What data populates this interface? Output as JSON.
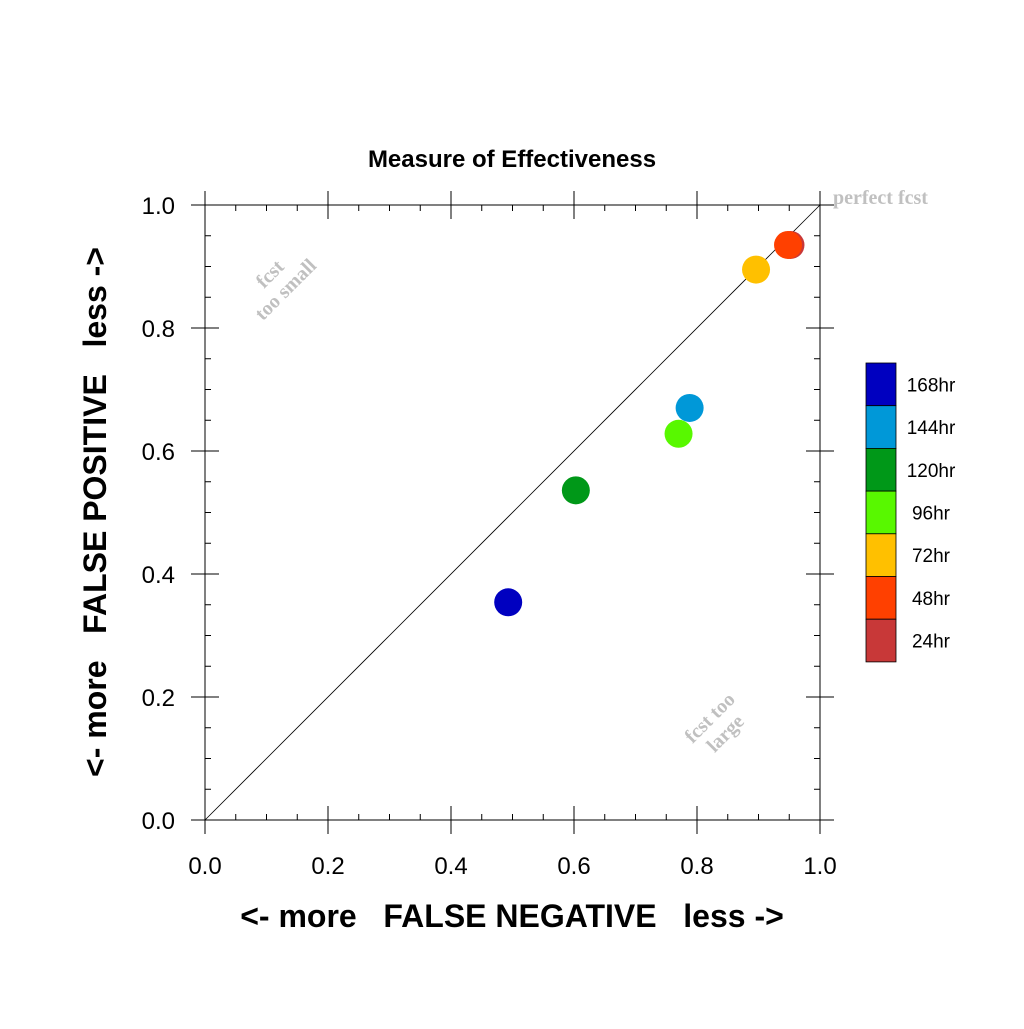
{
  "chart_data": {
    "type": "scatter",
    "title": "Measure of Effectiveness",
    "xlabel": "<- more   FALSE NEGATIVE   less ->",
    "ylabel": "<- more   FALSE POSITIVE   less ->",
    "xlim": [
      0.0,
      1.0
    ],
    "ylim": [
      0.0,
      1.0
    ],
    "xticks": [
      "0.0",
      "0.2",
      "0.4",
      "0.6",
      "0.8",
      "1.0"
    ],
    "yticks": [
      "0.0",
      "0.2",
      "0.4",
      "0.6",
      "0.8",
      "1.0"
    ],
    "grid": false,
    "reference_line": "diagonal y = x",
    "annotations": {
      "perfect": "perfect fcst",
      "too_small_line1": "fcst",
      "too_small_line2": "too small",
      "too_large_line1": "fcst too",
      "too_large_line2": "large"
    },
    "legend_placement": "right",
    "legend": [
      {
        "label": "168hr",
        "color": "#0000c0"
      },
      {
        "label": "144hr",
        "color": "#0098d8"
      },
      {
        "label": "120hr",
        "color": "#009818"
      },
      {
        "label": "96hr",
        "color": "#58f800"
      },
      {
        "label": "72hr",
        "color": "#ffc000"
      },
      {
        "label": "48hr",
        "color": "#ff4000"
      },
      {
        "label": "24hr",
        "color": "#c83838"
      }
    ],
    "points": [
      {
        "series": "168hr",
        "x": 0.493,
        "y": 0.354,
        "color": "#0000c0"
      },
      {
        "series": "144hr",
        "x": 0.788,
        "y": 0.67,
        "color": "#0098d8"
      },
      {
        "series": "120hr",
        "x": 0.603,
        "y": 0.536,
        "color": "#009818"
      },
      {
        "series": "96hr",
        "x": 0.77,
        "y": 0.628,
        "color": "#58f800"
      },
      {
        "series": "72hr",
        "x": 0.896,
        "y": 0.895,
        "color": "#ffc000"
      },
      {
        "series": "24hr",
        "x": 0.952,
        "y": 0.935,
        "color": "#c83838"
      },
      {
        "series": "48hr",
        "x": 0.948,
        "y": 0.935,
        "color": "#ff4000"
      }
    ]
  }
}
